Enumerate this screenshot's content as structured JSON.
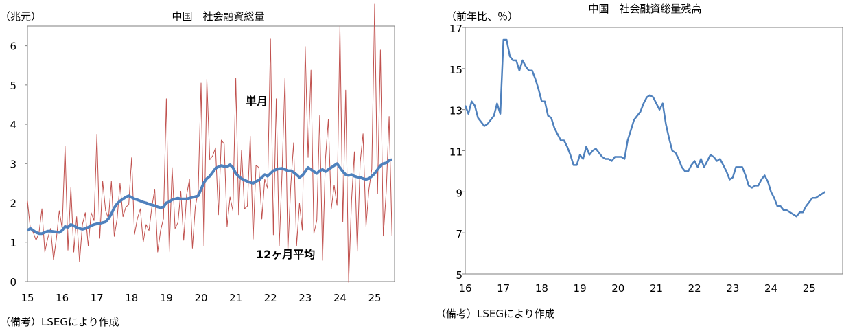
{
  "left": {
    "title": "中国　社会融資総量",
    "unit_label": "（兆元）",
    "note": "（備考）LSEGにより作成",
    "annotation_monthly": "単月",
    "annotation_avg": "12ヶ月平均",
    "colors": {
      "monthly": "#c0504d",
      "avg": "#4f81bd"
    }
  },
  "right": {
    "title": "中国　社会融資総量残高",
    "unit_label": "（前年比、％）",
    "note": "（備考）LSEGにより作成",
    "colors": {
      "line": "#4f81bd"
    }
  },
  "chart_data": [
    {
      "type": "line",
      "title": "中国　社会融資総量",
      "ylabel": "（兆元）",
      "ylim": [
        0,
        6.5
      ],
      "yticks": [
        0,
        1,
        2,
        3,
        4,
        5,
        6
      ],
      "x_ticks": [
        "15",
        "16",
        "17",
        "18",
        "19",
        "20",
        "21",
        "22",
        "23",
        "24",
        "25"
      ],
      "x_start": "2015-01",
      "frequency": "monthly",
      "series": [
        {
          "name": "単月",
          "values": [
            2.05,
            1.35,
            1.25,
            1.05,
            1.25,
            1.85,
            0.75,
            1.1,
            1.35,
            0.55,
            1.1,
            1.8,
            1.35,
            3.45,
            0.8,
            2.4,
            0.75,
            1.65,
            0.5,
            1.45,
            1.75,
            0.9,
            1.75,
            1.55,
            3.75,
            1.1,
            2.55,
            1.8,
            1.6,
            2.55,
            1.15,
            1.6,
            2.5,
            1.65,
            1.9,
            1.95,
            3.15,
            1.2,
            1.6,
            1.85,
            1.0,
            1.45,
            1.3,
            1.9,
            2.35,
            0.75,
            1.3,
            1.6,
            4.65,
            0.75,
            2.9,
            1.35,
            1.5,
            2.3,
            1.05,
            2.2,
            2.6,
            0.85,
            1.9,
            2.3,
            5.05,
            0.9,
            5.15,
            3.1,
            3.2,
            3.4,
            1.7,
            3.6,
            3.5,
            1.4,
            2.15,
            1.8,
            5.17,
            1.7,
            3.34,
            1.85,
            1.92,
            3.7,
            1.08,
            2.96,
            2.9,
            1.59,
            2.6,
            2.37,
            6.17,
            1.19,
            4.65,
            0.91,
            2.79,
            5.17,
            0.76,
            2.43,
            3.53,
            0.91,
            1.99,
            1.31,
            5.98,
            3.16,
            5.38,
            1.22,
            1.56,
            4.22,
            0.54,
            3.12,
            4.12,
            1.85,
            2.45,
            1.94,
            6.5,
            1.52,
            4.87,
            -0.02,
            2.06,
            3.3,
            0.77,
            3.03,
            3.76,
            1.4,
            2.34,
            2.86,
            7.06,
            2.23,
            5.89,
            1.16,
            2.29,
            4.2,
            1.16
          ]
        },
        {
          "name": "12ヶ月平均",
          "values": [
            1.3,
            1.35,
            1.3,
            1.25,
            1.22,
            1.22,
            1.25,
            1.28,
            1.28,
            1.27,
            1.26,
            1.25,
            1.3,
            1.4,
            1.38,
            1.45,
            1.42,
            1.38,
            1.35,
            1.33,
            1.35,
            1.38,
            1.42,
            1.45,
            1.47,
            1.48,
            1.5,
            1.52,
            1.6,
            1.72,
            1.88,
            1.98,
            2.05,
            2.1,
            2.15,
            2.18,
            2.14,
            2.1,
            2.08,
            2.05,
            2.02,
            2.0,
            1.97,
            1.95,
            1.93,
            1.9,
            1.88,
            1.9,
            2.0,
            2.03,
            2.08,
            2.1,
            2.12,
            2.1,
            2.1,
            2.1,
            2.12,
            2.14,
            2.16,
            2.18,
            2.35,
            2.52,
            2.62,
            2.68,
            2.78,
            2.88,
            2.92,
            2.95,
            2.93,
            2.92,
            2.97,
            2.9,
            2.75,
            2.68,
            2.62,
            2.58,
            2.55,
            2.52,
            2.5,
            2.55,
            2.58,
            2.65,
            2.72,
            2.68,
            2.75,
            2.82,
            2.85,
            2.87,
            2.88,
            2.85,
            2.82,
            2.82,
            2.78,
            2.72,
            2.65,
            2.7,
            2.8,
            2.9,
            2.85,
            2.8,
            2.75,
            2.82,
            2.85,
            2.8,
            2.85,
            2.9,
            2.95,
            3.0,
            2.9,
            2.8,
            2.72,
            2.7,
            2.72,
            2.68,
            2.66,
            2.65,
            2.62,
            2.6,
            2.62,
            2.68,
            2.75,
            2.85,
            2.95,
            3.0,
            3.02,
            3.08,
            3.1
          ]
        }
      ]
    },
    {
      "type": "line",
      "title": "中国　社会融資総量残高",
      "ylabel": "（前年比、％）",
      "ylim": [
        5,
        17
      ],
      "yticks": [
        5,
        7,
        9,
        11,
        13,
        15,
        17
      ],
      "x_ticks": [
        "16",
        "17",
        "18",
        "19",
        "20",
        "21",
        "22",
        "23",
        "24",
        "25"
      ],
      "x_start": "2016-01",
      "frequency": "monthly",
      "series": [
        {
          "name": "",
          "values": [
            13.2,
            12.8,
            13.4,
            13.2,
            12.6,
            12.4,
            12.2,
            12.3,
            12.5,
            12.7,
            13.3,
            12.8,
            16.4,
            16.4,
            15.6,
            15.4,
            15.4,
            14.9,
            15.4,
            15.1,
            14.9,
            14.9,
            14.5,
            14.0,
            13.4,
            13.4,
            12.7,
            12.6,
            12.1,
            11.8,
            11.5,
            11.5,
            11.2,
            10.8,
            10.3,
            10.3,
            10.8,
            10.6,
            11.2,
            10.8,
            11.0,
            11.1,
            10.9,
            10.7,
            10.6,
            10.6,
            10.5,
            10.7,
            10.7,
            10.7,
            10.6,
            11.5,
            12.0,
            12.5,
            12.7,
            12.9,
            13.3,
            13.6,
            13.7,
            13.6,
            13.3,
            13.0,
            13.3,
            12.3,
            11.6,
            11.0,
            10.9,
            10.6,
            10.2,
            10.0,
            10.0,
            10.3,
            10.5,
            10.2,
            10.6,
            10.2,
            10.5,
            10.8,
            10.7,
            10.5,
            10.6,
            10.3,
            10.0,
            9.6,
            9.7,
            10.2,
            10.2,
            10.2,
            9.8,
            9.3,
            9.2,
            9.3,
            9.3,
            9.6,
            9.8,
            9.5,
            9.0,
            8.7,
            8.3,
            8.3,
            8.1,
            8.1,
            8.0,
            7.9,
            7.8,
            8.0,
            8.0,
            8.3,
            8.5,
            8.7,
            8.7,
            8.8,
            8.9,
            9.0
          ]
        }
      ]
    }
  ]
}
